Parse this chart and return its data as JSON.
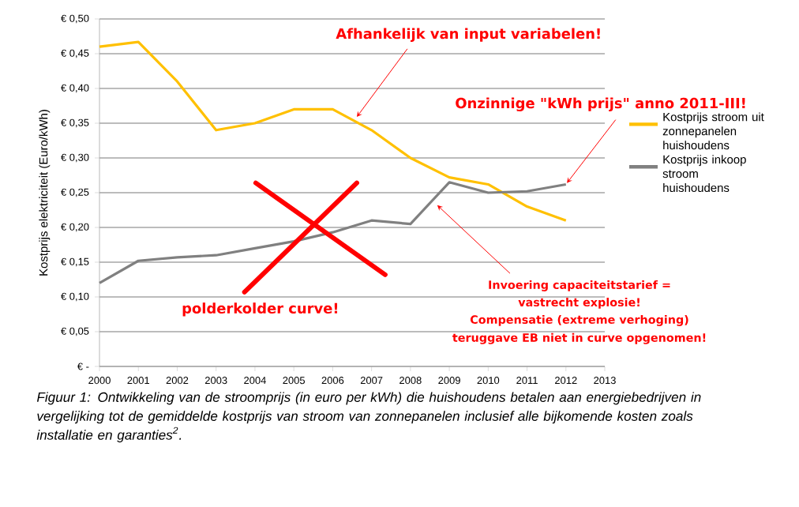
{
  "chart_data": {
    "type": "line",
    "ylabel": "Kostprijs elektriciteit (Euro/kWh)",
    "xlim": [
      2000,
      2013
    ],
    "xticks": [
      2000,
      2001,
      2002,
      2003,
      2004,
      2005,
      2006,
      2007,
      2008,
      2009,
      2010,
      2011,
      2012,
      2013
    ],
    "ylim": [
      0,
      0.5
    ],
    "yticks": [
      {
        "value": 0,
        "label": "€ -"
      },
      {
        "value": 0.05,
        "label": "€ 0,05"
      },
      {
        "value": 0.1,
        "label": "€ 0,10"
      },
      {
        "value": 0.15,
        "label": "€ 0,15"
      },
      {
        "value": 0.2,
        "label": "€ 0,20"
      },
      {
        "value": 0.25,
        "label": "€ 0,25"
      },
      {
        "value": 0.3,
        "label": "€ 0,30"
      },
      {
        "value": 0.35,
        "label": "€ 0,35"
      },
      {
        "value": 0.4,
        "label": "€ 0,40"
      },
      {
        "value": 0.45,
        "label": "€ 0,45"
      },
      {
        "value": 0.5,
        "label": "€ 0,50"
      }
    ],
    "grid": "y",
    "legend": "right",
    "series": [
      {
        "name": "Kostprijs stroom uit zonnepanelen huishoudens",
        "color": "#ffc000",
        "x": [
          2000,
          2001,
          2002,
          2003,
          2004,
          2005,
          2006,
          2007,
          2008,
          2009,
          2010,
          2011,
          2012
        ],
        "values": [
          0.46,
          0.467,
          0.41,
          0.34,
          0.35,
          0.37,
          0.37,
          0.34,
          0.3,
          0.272,
          0.262,
          0.23,
          0.21
        ]
      },
      {
        "name": "Kostprijs inkoop stroom huishoudens",
        "color": "#808080",
        "x": [
          2000,
          2001,
          2002,
          2003,
          2004,
          2005,
          2006,
          2007,
          2008,
          2009,
          2010,
          2011,
          2012
        ],
        "values": [
          0.12,
          0.152,
          0.157,
          0.16,
          0.17,
          0.18,
          0.193,
          0.21,
          0.205,
          0.265,
          0.25,
          0.252,
          0.262
        ]
      }
    ],
    "annotations": [
      "Afhankelijk van input variabelen!",
      {
        "text": "Onzinnige \"kWh prijs\" anno 2011-III!",
        "x": 2012,
        "y": 0.262
      },
      "polderkolder curve!",
      "Invoering capaciteitstarief =",
      "vastrecht explosie!",
      "Compensatie (extreme verhoging)",
      "teruggave EB niet in curve opgenomen!",
      "Figuur 1:  Ontwikkeling van de stroomprijs (in euro per kWh) die huishoudens betalen aan energiebedrijven in vergelijking tot de gemiddelde kostprijs van stroom van zonnepanelen inclusief alle bijkomende kosten zoals installatie en garanties$^{2}$."
    ]
  }
}
